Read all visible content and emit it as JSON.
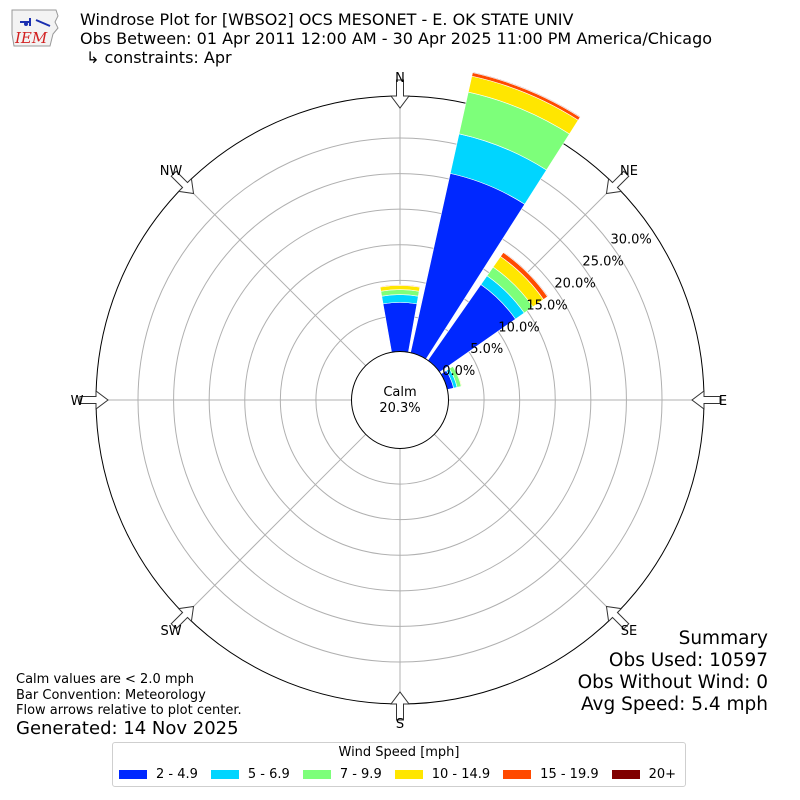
{
  "header": {
    "title_line1": "Windrose Plot for [WBSO2] OCS MESONET - E. OK STATE UNIV",
    "title_line2": "Obs Between: 01 Apr 2011 12:00 AM - 30 Apr 2025 11:00 PM America/Chicago",
    "title_line3": "↳ constraints: Apr",
    "logo_text": "IEM"
  },
  "chart_data": {
    "type": "windrose",
    "directions": [
      "N",
      "NE",
      "E",
      "SE",
      "S",
      "SW",
      "W",
      "NW"
    ],
    "radial_tick_labels": [
      "0.0%",
      "5.0%",
      "10.0%",
      "15.0%",
      "20.0%",
      "25.0%",
      "30.0%"
    ],
    "rlim": [
      0,
      30
    ],
    "calm_label": "Calm",
    "calm_value": "20.3%",
    "speed_bins": [
      "2 - 4.9",
      "5 - 6.9",
      "7 - 9.9",
      "10 - 14.9",
      "15 - 19.9",
      "20+"
    ],
    "colors": [
      "#0028ff",
      "#00d5ff",
      "#7dff7a",
      "#ffe600",
      "#ff4a00",
      "#800000"
    ],
    "bar_direction_degrees": [
      0,
      22.5,
      45
    ],
    "cumulative_values": [
      [
        6.9,
        8.0,
        8.7,
        9.3,
        9.4,
        9.4
      ],
      [
        25.8,
        31.5,
        37.5,
        39.8,
        40.3,
        40.4
      ],
      [
        13.0,
        14.5,
        16.0,
        17.8,
        18.5,
        18.6
      ]
    ],
    "small_bar": {
      "direction_degrees": 67.5,
      "cumulative_values": [
        0.9,
        1.4,
        2.0,
        2.1,
        2.1,
        2.1
      ]
    },
    "grid": true,
    "legend_title": "Wind Speed [mph]",
    "legend_position": "bottom"
  },
  "notes": {
    "line1": "Calm values are < 2.0 mph",
    "line2": "Bar Convention: Meteorology",
    "line3": "Flow arrows relative to plot center.",
    "generated": "Generated: 14 Nov 2025"
  },
  "summary": {
    "title": "Summary",
    "obs_used": "Obs Used: 10597",
    "obs_without_wind": "Obs Without Wind: 0",
    "avg_speed": "Avg Speed: 5.4 mph"
  }
}
